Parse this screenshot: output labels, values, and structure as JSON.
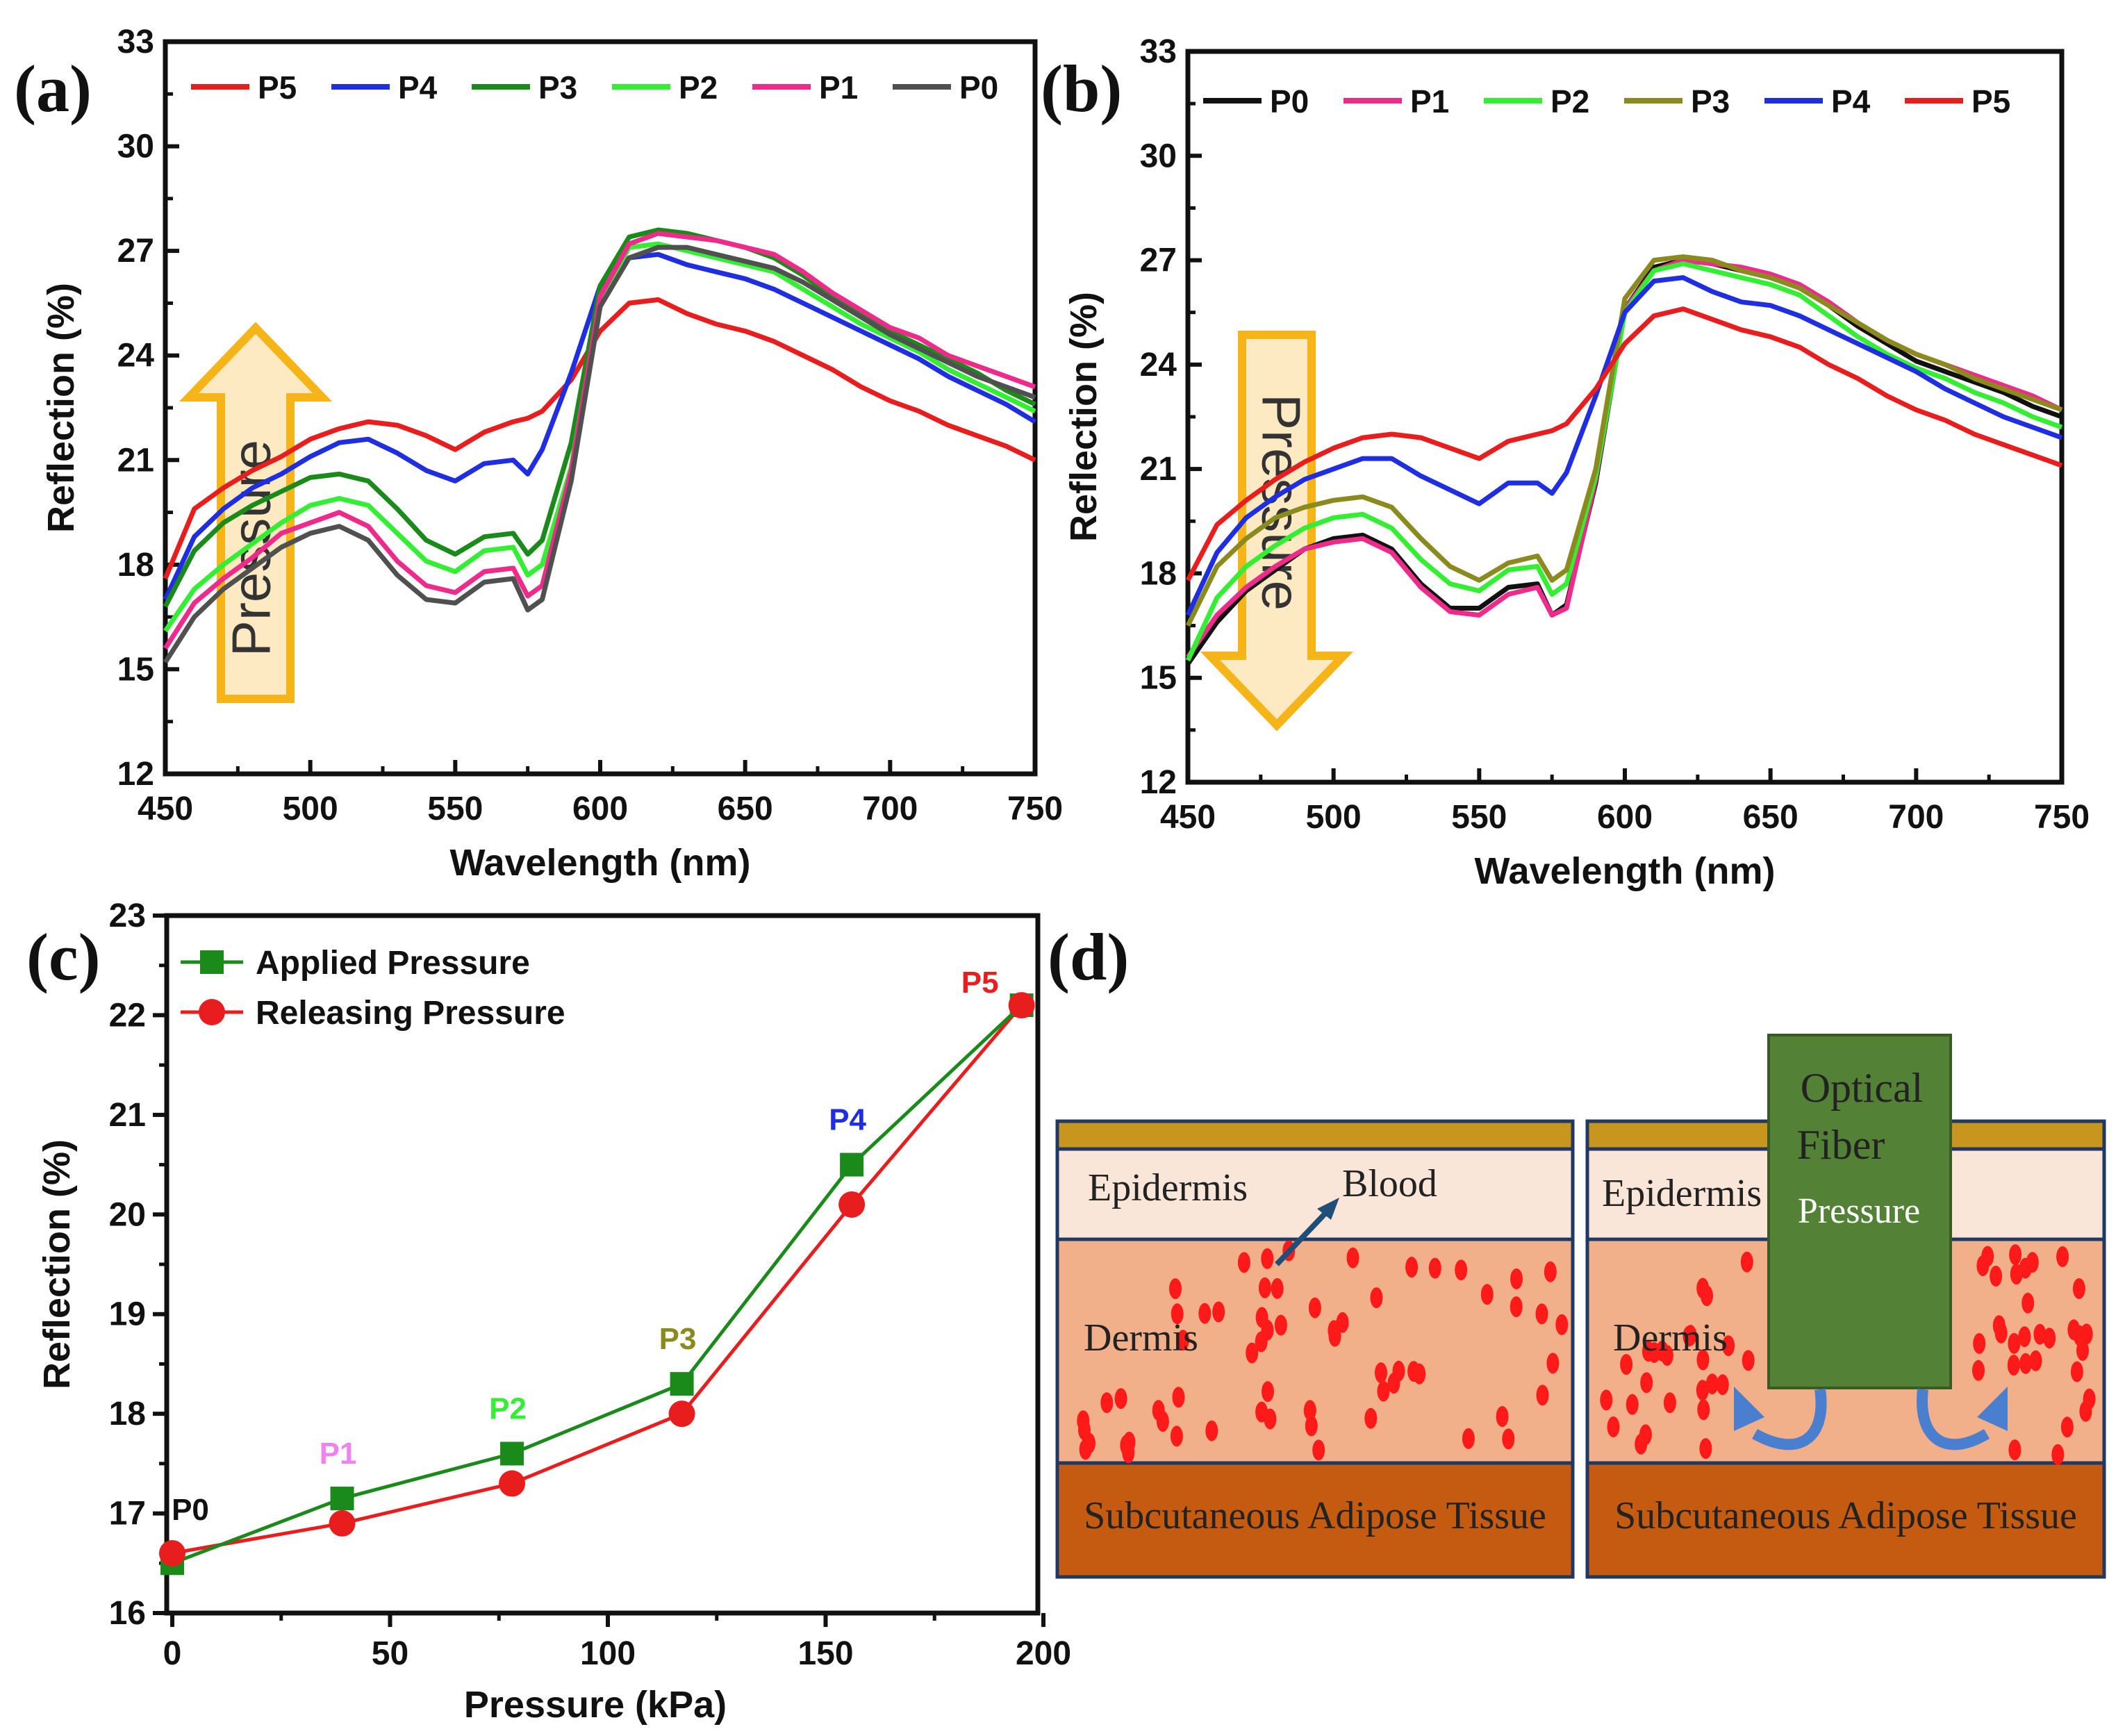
{
  "panels": {
    "a": {
      "label": "(a)"
    },
    "b": {
      "label": "(b)"
    },
    "c": {
      "label": "(c)"
    },
    "d": {
      "label": "(d)"
    }
  },
  "colors": {
    "P0a": "#505050",
    "P0b": "#111111",
    "P1": "#ee2a8a",
    "P2": "#33ee33",
    "P3a": "#1a8a1a",
    "P3b": "#8a8a1f",
    "P4": "#1e2ee0",
    "P5": "#e81e1e",
    "arrow_fill": "#fde9c2",
    "arrow_stroke": "#f5b417",
    "applied": "#1a8a1a",
    "releasing": "#e81e1e",
    "skin_top": "#c8951e",
    "epidermis": "#fae6d8",
    "dermis": "#f1b08a",
    "adipose": "#c55a11",
    "fiber": "#538135",
    "border": "#1f3864",
    "blood": "#ff1a1a",
    "flow_arrow": "#4a7fd0"
  },
  "chart_data": [
    {
      "id": "a",
      "type": "line",
      "title": "",
      "xlabel": "Wavelength (nm)",
      "ylabel": "Reflection (%)",
      "xlim": [
        450,
        750
      ],
      "ylim": [
        12,
        33
      ],
      "xticks": [
        450,
        500,
        550,
        600,
        650,
        700,
        750
      ],
      "yticks": [
        12,
        15,
        18,
        21,
        24,
        27,
        30,
        33
      ],
      "legend_position": "top",
      "legend": [
        "P5",
        "P4",
        "P3",
        "P2",
        "P1",
        "P0"
      ],
      "annotation": "Pressure",
      "x": [
        450,
        460,
        470,
        480,
        490,
        500,
        510,
        520,
        530,
        540,
        550,
        560,
        570,
        575,
        580,
        590,
        600,
        610,
        620,
        630,
        640,
        650,
        660,
        670,
        680,
        690,
        700,
        710,
        720,
        730,
        740,
        750
      ],
      "series": [
        {
          "name": "P5",
          "color_key": "P5",
          "values": [
            17.6,
            19.6,
            20.2,
            20.7,
            21.1,
            21.6,
            21.9,
            22.1,
            22.0,
            21.7,
            21.3,
            21.8,
            22.1,
            22.2,
            22.4,
            23.3,
            24.7,
            25.5,
            25.6,
            25.2,
            24.9,
            24.7,
            24.4,
            24.0,
            23.6,
            23.1,
            22.7,
            22.4,
            22.0,
            21.7,
            21.4,
            21.0
          ]
        },
        {
          "name": "P4",
          "color_key": "P4",
          "values": [
            17.0,
            18.8,
            19.6,
            20.2,
            20.6,
            21.1,
            21.5,
            21.6,
            21.2,
            20.7,
            20.4,
            20.9,
            21.0,
            20.6,
            21.3,
            23.5,
            26.0,
            26.8,
            26.9,
            26.6,
            26.4,
            26.2,
            25.9,
            25.5,
            25.1,
            24.7,
            24.3,
            23.9,
            23.4,
            23.0,
            22.6,
            22.1
          ]
        },
        {
          "name": "P3",
          "color_key": "P3a",
          "values": [
            16.8,
            18.4,
            19.2,
            19.7,
            20.1,
            20.5,
            20.6,
            20.4,
            19.6,
            18.7,
            18.3,
            18.8,
            18.9,
            18.3,
            18.7,
            21.5,
            26.0,
            27.4,
            27.6,
            27.5,
            27.3,
            27.1,
            26.8,
            26.3,
            25.7,
            25.2,
            24.7,
            24.3,
            23.9,
            23.5,
            23.0,
            22.6
          ]
        },
        {
          "name": "P2",
          "color_key": "P2",
          "values": [
            16.1,
            17.3,
            18.0,
            18.6,
            19.2,
            19.7,
            19.9,
            19.7,
            18.9,
            18.1,
            17.8,
            18.4,
            18.5,
            17.7,
            18.0,
            20.8,
            25.6,
            27.1,
            27.2,
            27.0,
            26.8,
            26.6,
            26.4,
            25.9,
            25.4,
            24.9,
            24.5,
            24.1,
            23.6,
            23.2,
            22.8,
            22.4
          ]
        },
        {
          "name": "P1",
          "color_key": "P1",
          "values": [
            15.6,
            16.9,
            17.6,
            18.2,
            18.9,
            19.2,
            19.5,
            19.1,
            18.1,
            17.4,
            17.2,
            17.8,
            17.9,
            17.1,
            17.4,
            20.7,
            25.7,
            27.2,
            27.5,
            27.4,
            27.3,
            27.1,
            26.9,
            26.4,
            25.8,
            25.3,
            24.8,
            24.5,
            24.0,
            23.7,
            23.4,
            23.1
          ]
        },
        {
          "name": "P0",
          "color_key": "P0a",
          "values": [
            15.2,
            16.5,
            17.3,
            17.9,
            18.5,
            18.9,
            19.1,
            18.7,
            17.7,
            17.0,
            16.9,
            17.5,
            17.6,
            16.7,
            17.0,
            20.4,
            25.4,
            26.8,
            27.1,
            27.1,
            26.9,
            26.7,
            26.5,
            26.1,
            25.6,
            25.1,
            24.6,
            24.2,
            23.8,
            23.4,
            23.1,
            22.8
          ]
        }
      ]
    },
    {
      "id": "b",
      "type": "line",
      "title": "",
      "xlabel": "Wavelength (nm)",
      "ylabel": "Reflection (%)",
      "xlim": [
        450,
        750
      ],
      "ylim": [
        12,
        33
      ],
      "xticks": [
        450,
        500,
        550,
        600,
        650,
        700,
        750
      ],
      "yticks": [
        12,
        15,
        18,
        21,
        24,
        27,
        30,
        33
      ],
      "legend_position": "top",
      "legend": [
        "P0",
        "P1",
        "P2",
        "P3",
        "P4",
        "P5"
      ],
      "annotation": "Pressure",
      "x": [
        450,
        460,
        470,
        480,
        490,
        500,
        510,
        520,
        530,
        540,
        550,
        560,
        570,
        575,
        580,
        590,
        600,
        610,
        620,
        630,
        640,
        650,
        660,
        670,
        680,
        690,
        700,
        710,
        720,
        730,
        740,
        750
      ],
      "series": [
        {
          "name": "P0",
          "color_key": "P0b",
          "values": [
            15.4,
            16.6,
            17.5,
            18.1,
            18.7,
            19.0,
            19.1,
            18.7,
            17.7,
            17.0,
            17.0,
            17.6,
            17.7,
            16.8,
            17.1,
            20.6,
            25.6,
            26.8,
            27.0,
            26.9,
            26.7,
            26.5,
            26.2,
            25.7,
            25.1,
            24.6,
            24.1,
            23.8,
            23.5,
            23.2,
            22.8,
            22.5
          ]
        },
        {
          "name": "P1",
          "color_key": "P1",
          "values": [
            15.6,
            16.8,
            17.6,
            18.2,
            18.7,
            18.9,
            19.0,
            18.6,
            17.6,
            16.9,
            16.8,
            17.4,
            17.6,
            16.8,
            17.0,
            20.7,
            25.6,
            26.7,
            27.0,
            26.9,
            26.8,
            26.6,
            26.3,
            25.8,
            25.2,
            24.7,
            24.3,
            24.0,
            23.7,
            23.4,
            23.1,
            22.7
          ]
        },
        {
          "name": "P2",
          "color_key": "P2",
          "values": [
            15.5,
            17.3,
            18.2,
            18.8,
            19.3,
            19.6,
            19.7,
            19.3,
            18.4,
            17.7,
            17.5,
            18.1,
            18.2,
            17.4,
            17.7,
            20.8,
            25.5,
            26.7,
            26.9,
            26.7,
            26.5,
            26.3,
            26.0,
            25.4,
            24.8,
            24.3,
            23.9,
            23.6,
            23.2,
            22.9,
            22.5,
            22.2
          ]
        },
        {
          "name": "P3",
          "color_key": "P3b",
          "values": [
            16.5,
            18.2,
            19.0,
            19.6,
            19.9,
            20.1,
            20.2,
            19.9,
            19.0,
            18.2,
            17.8,
            18.3,
            18.5,
            17.8,
            18.1,
            21.0,
            25.9,
            27.0,
            27.1,
            27.0,
            26.7,
            26.5,
            26.2,
            25.7,
            25.2,
            24.7,
            24.3,
            24.0,
            23.6,
            23.3,
            23.0,
            22.7
          ]
        },
        {
          "name": "P4",
          "color_key": "P4",
          "values": [
            16.8,
            18.6,
            19.6,
            20.2,
            20.7,
            21.0,
            21.3,
            21.3,
            20.8,
            20.4,
            20.0,
            20.6,
            20.6,
            20.3,
            20.9,
            23.1,
            25.5,
            26.4,
            26.5,
            26.1,
            25.8,
            25.7,
            25.4,
            25.0,
            24.6,
            24.2,
            23.8,
            23.3,
            22.9,
            22.5,
            22.2,
            21.9
          ]
        },
        {
          "name": "P5",
          "color_key": "P5",
          "values": [
            17.8,
            19.4,
            20.1,
            20.7,
            21.2,
            21.6,
            21.9,
            22.0,
            21.9,
            21.6,
            21.3,
            21.8,
            22.0,
            22.1,
            22.3,
            23.3,
            24.6,
            25.4,
            25.6,
            25.3,
            25.0,
            24.8,
            24.5,
            24.0,
            23.6,
            23.1,
            22.7,
            22.4,
            22.0,
            21.7,
            21.4,
            21.1
          ]
        }
      ]
    },
    {
      "id": "c",
      "type": "line",
      "title": "",
      "xlabel": "Pressure (kPa)",
      "ylabel": "Reflection (%)",
      "xlim": [
        0,
        200
      ],
      "ylim": [
        16,
        23
      ],
      "xticks": [
        0,
        50,
        100,
        150,
        200
      ],
      "yticks": [
        16,
        17,
        18,
        19,
        20,
        21,
        22,
        23
      ],
      "legend_position": "top-left",
      "x": [
        0,
        39,
        78,
        117,
        156,
        195
      ],
      "point_labels": [
        "P0",
        "P1",
        "P2",
        "P3",
        "P4",
        "P5"
      ],
      "point_label_colors": [
        "#111111",
        "#ee82ee",
        "#33ee33",
        "#8a8a1f",
        "#1e2ee0",
        "#e81e1e"
      ],
      "series": [
        {
          "name": "Applied Pressure",
          "marker": "square",
          "color_key": "applied",
          "values": [
            16.5,
            17.15,
            17.6,
            18.3,
            20.5,
            22.1
          ]
        },
        {
          "name": "Releasing Pressure",
          "marker": "circle",
          "color_key": "releasing",
          "values": [
            16.6,
            16.9,
            17.3,
            18.0,
            20.1,
            22.1
          ]
        }
      ]
    }
  ],
  "diagram": {
    "left": {
      "epidermis": "Epidermis",
      "blood": "Blood",
      "dermis": "Dermis",
      "adipose": "Subcutaneous Adipose Tissue"
    },
    "right": {
      "epidermis": "Epidermis",
      "fiber_line1": "Optical",
      "fiber_line2": "Fiber",
      "pressure": "Pressure",
      "dermis": "Dermis",
      "adipose": "Subcutaneous Adipose Tissue"
    }
  }
}
